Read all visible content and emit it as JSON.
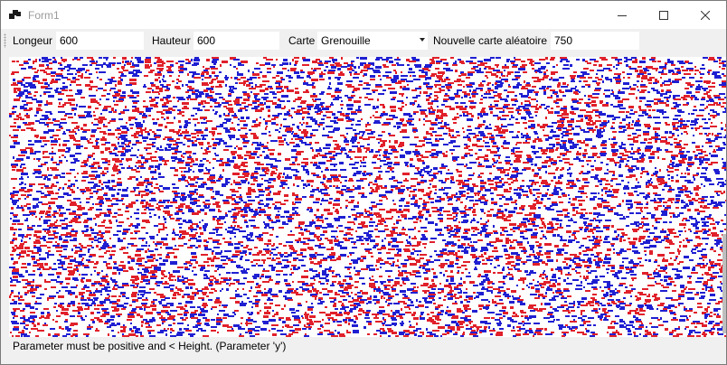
{
  "window": {
    "title": "Form1",
    "icons": {
      "app": "app-window-icon",
      "minimize": "minimize-icon",
      "maximize": "maximize-icon",
      "close": "close-icon"
    }
  },
  "toolbar": {
    "width_label": "Longeur",
    "width_value": "600",
    "height_label": "Hauteur",
    "height_value": "600",
    "map_label": "Carte",
    "map_selected": "Grenouille",
    "random_map_label": "Nouvelle carte aléatoire",
    "random_map_value": "750"
  },
  "canvas": {
    "description_colors": {
      "background": "#ffffff",
      "red": "#e0202a",
      "blue": "#1f1fd2"
    }
  },
  "status": {
    "message": "Parameter must be positive and < Height. (Parameter 'y')"
  }
}
